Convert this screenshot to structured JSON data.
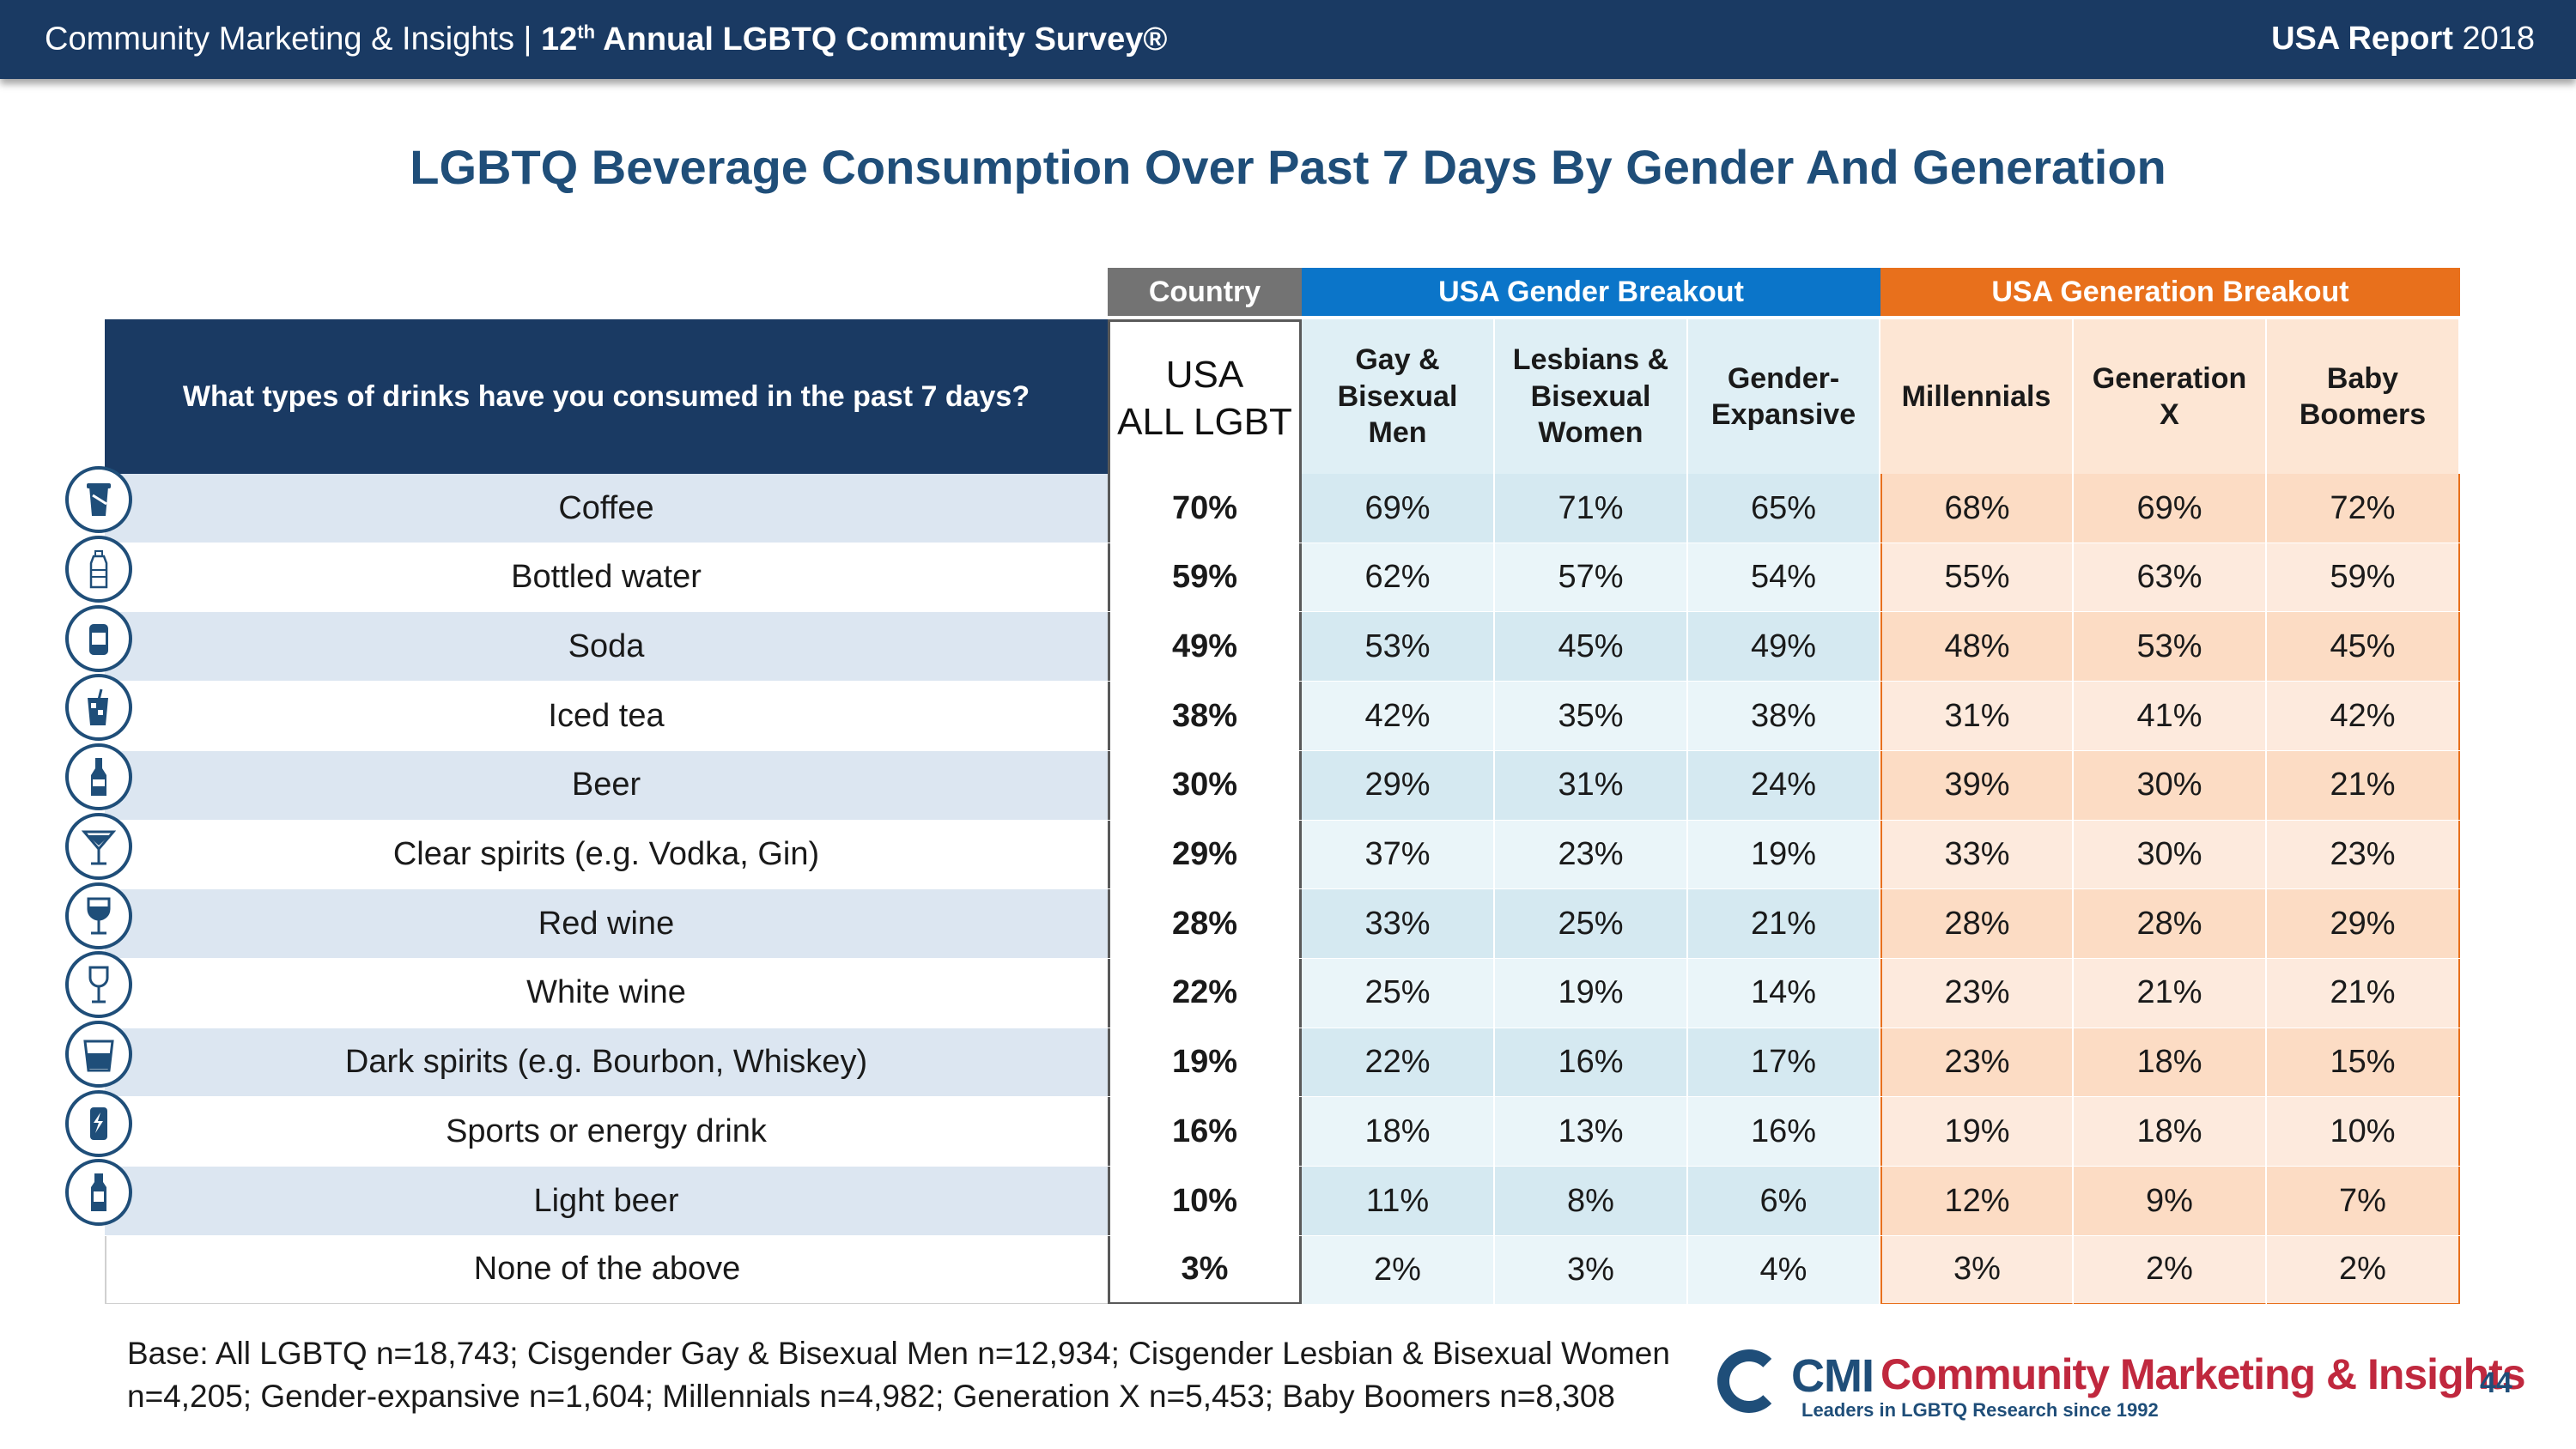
{
  "header": {
    "left_text": "Community Marketing & Insights  |  ",
    "survey_ordinal": "12",
    "survey_ordinal_suffix": "th",
    "survey_name": " Annual LGBTQ Community Survey®",
    "report_bold": "USA Report",
    "report_year": " 2018"
  },
  "title": "LGBTQ Beverage Consumption Over Past 7 Days By Gender And Generation",
  "table": {
    "groups": {
      "country": "Country",
      "gender": "USA Gender Breakout",
      "generation": "USA Generation Breakout"
    },
    "question": "What types of drinks have you consumed in the past 7 days?",
    "usa_head_line1": "USA",
    "usa_head_line2": "ALL LGBT",
    "gender_cols": [
      "Gay & Bisexual Men",
      "Lesbians & Bisexual Women",
      "Gender-Expansive"
    ],
    "generation_cols": [
      "Millennials",
      "Generation X",
      "Baby Boomers"
    ],
    "rows": [
      {
        "label": "Coffee",
        "icon": "coffee-cup-icon",
        "usa": "70%",
        "gender": [
          "69%",
          "71%",
          "65%"
        ],
        "generation": [
          "68%",
          "69%",
          "72%"
        ]
      },
      {
        "label": "Bottled water",
        "icon": "water-bottle-icon",
        "usa": "59%",
        "gender": [
          "62%",
          "57%",
          "54%"
        ],
        "generation": [
          "55%",
          "63%",
          "59%"
        ]
      },
      {
        "label": "Soda",
        "icon": "soda-can-icon",
        "usa": "49%",
        "gender": [
          "53%",
          "45%",
          "49%"
        ],
        "generation": [
          "48%",
          "53%",
          "45%"
        ]
      },
      {
        "label": "Iced tea",
        "icon": "iced-tea-glass-icon",
        "usa": "38%",
        "gender": [
          "42%",
          "35%",
          "38%"
        ],
        "generation": [
          "31%",
          "41%",
          "42%"
        ]
      },
      {
        "label": "Beer",
        "icon": "beer-bottle-icon",
        "usa": "30%",
        "gender": [
          "29%",
          "31%",
          "24%"
        ],
        "generation": [
          "39%",
          "30%",
          "21%"
        ]
      },
      {
        "label": "Clear spirits (e.g. Vodka, Gin)",
        "icon": "martini-glass-icon",
        "usa": "29%",
        "gender": [
          "37%",
          "23%",
          "19%"
        ],
        "generation": [
          "33%",
          "30%",
          "23%"
        ]
      },
      {
        "label": "Red wine",
        "icon": "red-wine-glass-icon",
        "usa": "28%",
        "gender": [
          "33%",
          "25%",
          "21%"
        ],
        "generation": [
          "28%",
          "28%",
          "29%"
        ]
      },
      {
        "label": "White wine",
        "icon": "white-wine-glass-icon",
        "usa": "22%",
        "gender": [
          "25%",
          "19%",
          "14%"
        ],
        "generation": [
          "23%",
          "21%",
          "21%"
        ]
      },
      {
        "label": "Dark spirits (e.g. Bourbon, Whiskey)",
        "icon": "whiskey-glass-icon",
        "usa": "19%",
        "gender": [
          "22%",
          "16%",
          "17%"
        ],
        "generation": [
          "23%",
          "18%",
          "15%"
        ]
      },
      {
        "label": "Sports or energy drink",
        "icon": "energy-drink-can-icon",
        "usa": "16%",
        "gender": [
          "18%",
          "13%",
          "16%"
        ],
        "generation": [
          "19%",
          "18%",
          "10%"
        ]
      },
      {
        "label": "Light beer",
        "icon": "light-beer-bottle-icon",
        "usa": "10%",
        "gender": [
          "11%",
          "8%",
          "6%"
        ],
        "generation": [
          "12%",
          "9%",
          "7%"
        ]
      },
      {
        "label": "None of the above",
        "icon": "",
        "usa": "3%",
        "gender": [
          "2%",
          "3%",
          "4%"
        ],
        "generation": [
          "3%",
          "2%",
          "2%"
        ]
      }
    ]
  },
  "base_note": "Base: All LGBTQ n=18,743; Cisgender Gay & Bisexual Men n=12,934; Cisgender Lesbian & Bisexual Women n=4,205; Gender-expansive n=1,604; Millennials n=4,982; Generation X n=5,453; Baby Boomers n=8,308",
  "logo": {
    "cmi": "CMI",
    "name": "Community Marketing & Insights",
    "tagline": "Leaders in LGBTQ Research since 1992"
  },
  "page_number": "44",
  "colors": {
    "navy": "#1a3a63",
    "title_blue": "#1f4e79",
    "gender_blue": "#0b75c9",
    "generation_orange": "#e8701c",
    "country_gray": "#737373"
  }
}
